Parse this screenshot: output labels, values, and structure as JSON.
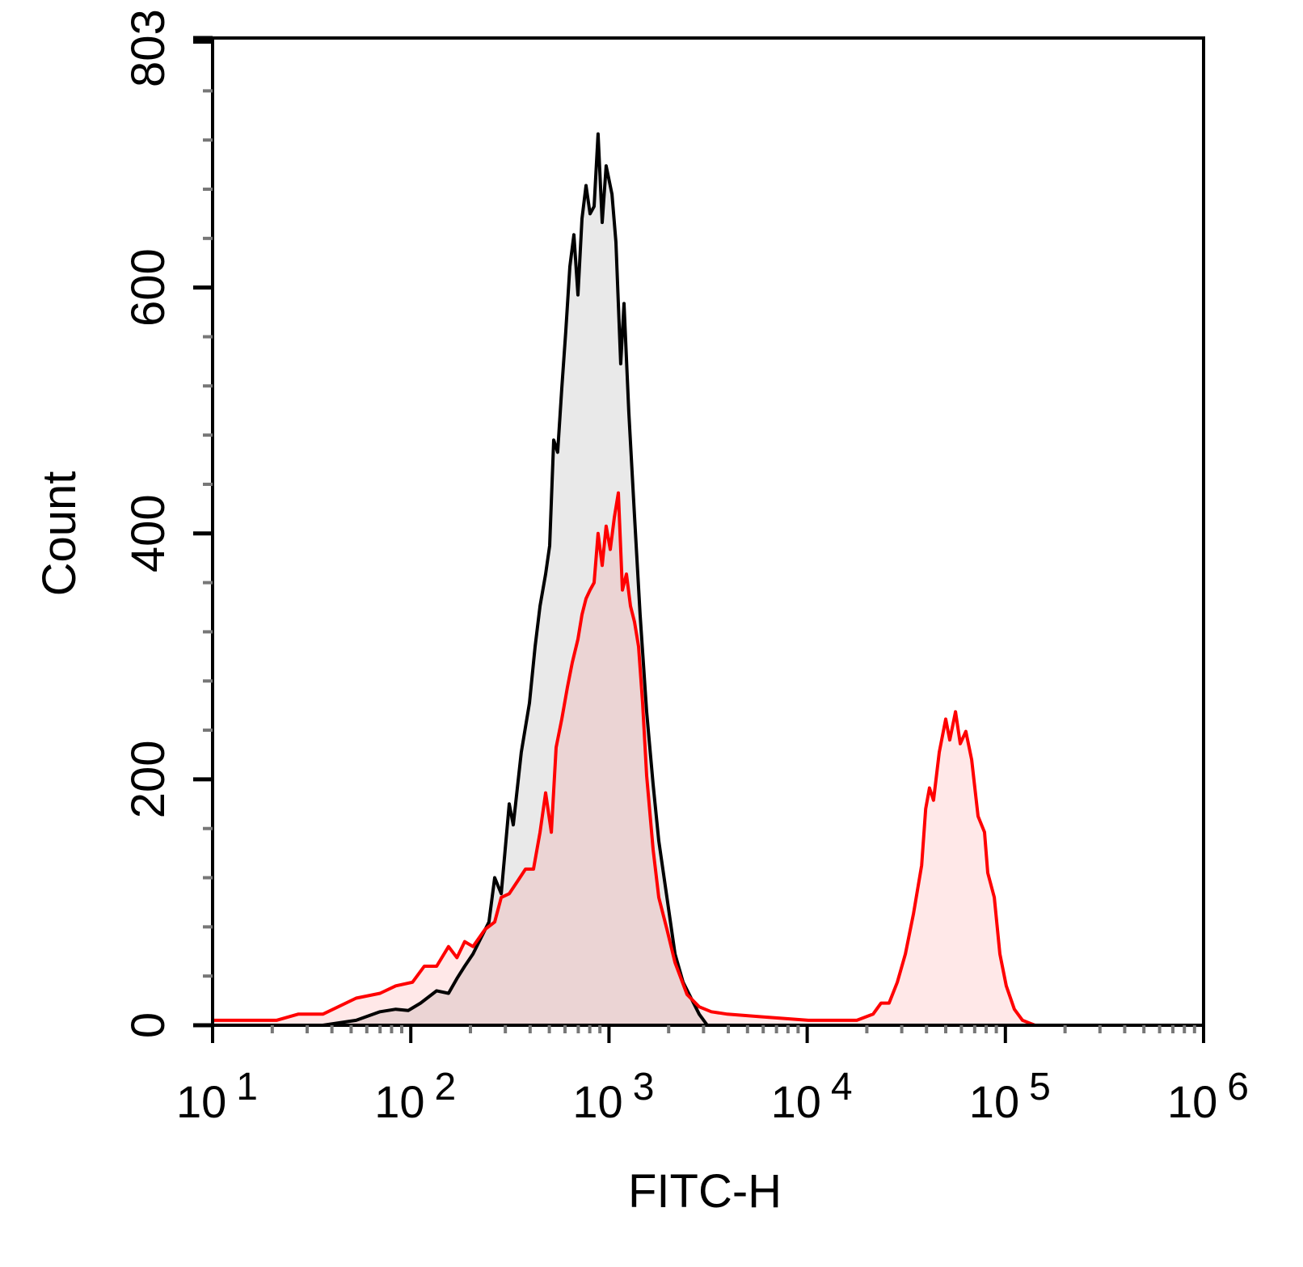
{
  "chart_data": {
    "type": "area",
    "xlabel": "FITC-H",
    "ylabel": "Count",
    "x_scale": "log",
    "xlim": [
      10,
      1000000
    ],
    "ylim": [
      0,
      803
    ],
    "x_ticks": [
      {
        "base": "10",
        "exp": "1",
        "value": 10
      },
      {
        "base": "10",
        "exp": "2",
        "value": 100
      },
      {
        "base": "10",
        "exp": "3",
        "value": 1000
      },
      {
        "base": "10",
        "exp": "4",
        "value": 10000
      },
      {
        "base": "10",
        "exp": "5",
        "value": 100000
      },
      {
        "base": "10",
        "exp": "6",
        "value": 1000000
      }
    ],
    "y_ticks": [
      {
        "label": "0",
        "value": 0
      },
      {
        "label": "200",
        "value": 200
      },
      {
        "label": "400",
        "value": 400
      },
      {
        "label": "600",
        "value": 600
      },
      {
        "label": "803",
        "value": 803
      }
    ],
    "grid": false,
    "series": [
      {
        "color": "#000000",
        "fill": "#e9e9e9",
        "x": [
          10,
          36,
          53,
          70,
          84,
          97,
          112,
          135,
          155,
          171,
          187,
          206,
          226,
          248,
          265,
          286,
          314,
          329,
          361,
          397,
          424,
          449,
          479,
          502,
          526,
          551,
          578,
          605,
          635,
          665,
          697,
          731,
          766,
          803,
          841,
          881,
          924,
          968,
          1035,
          1084,
          1146,
          1191,
          1259,
          1345,
          1436,
          1549,
          1670,
          1783,
          1960,
          2153,
          2365,
          2597,
          2852,
          3133,
          3963,
          1000000
        ],
        "y": [
          0,
          0,
          4,
          11,
          13,
          12,
          18,
          28,
          26,
          38,
          48,
          58,
          71,
          84,
          120,
          107,
          180,
          163,
          222,
          262,
          308,
          341,
          367,
          390,
          476,
          466,
          518,
          564,
          617,
          643,
          594,
          656,
          683,
          660,
          666,
          725,
          653,
          699,
          676,
          637,
          538,
          587,
          499,
          414,
          334,
          255,
          196,
          150,
          104,
          58,
          35,
          22,
          9,
          0,
          0,
          0
        ]
      },
      {
        "color": "#ff0000",
        "fill": "#ffe4e4",
        "x": [
          10,
          14,
          21,
          27,
          36,
          53,
          70,
          84,
          102,
          117,
          135,
          155,
          171,
          187,
          206,
          237,
          265,
          286,
          314,
          345,
          379,
          416,
          449,
          479,
          512,
          541,
          578,
          617,
          653,
          697,
          731,
          766,
          803,
          841,
          881,
          924,
          968,
          1015,
          1064,
          1115,
          1169,
          1225,
          1284,
          1345,
          1410,
          1478,
          1549,
          1670,
          1783,
          1960,
          2153,
          2478,
          2852,
          3283,
          3963,
          5768,
          10140,
          17800,
          21500,
          23600,
          25900,
          28500,
          31300,
          34400,
          37800,
          39600,
          41400,
          43400,
          46400,
          50000,
          52400,
          56000,
          59200,
          63200,
          67600,
          72800,
          78500,
          81500,
          87900,
          93800,
          101000,
          111000,
          122000,
          141000,
          1000000
        ],
        "y": [
          4,
          4,
          4,
          9,
          9,
          22,
          26,
          32,
          35,
          48,
          48,
          64,
          55,
          68,
          64,
          78,
          84,
          104,
          107,
          117,
          127,
          127,
          157,
          189,
          157,
          226,
          249,
          275,
          295,
          314,
          334,
          347,
          354,
          360,
          400,
          374,
          406,
          387,
          413,
          433,
          354,
          367,
          341,
          328,
          308,
          262,
          203,
          143,
          104,
          78,
          51,
          25,
          15,
          11,
          9,
          7,
          4,
          4,
          9,
          18,
          18,
          35,
          58,
          91,
          130,
          176,
          193,
          183,
          222,
          249,
          232,
          255,
          229,
          239,
          216,
          170,
          157,
          124,
          104,
          58,
          32,
          13,
          4,
          0,
          0
        ]
      }
    ]
  }
}
